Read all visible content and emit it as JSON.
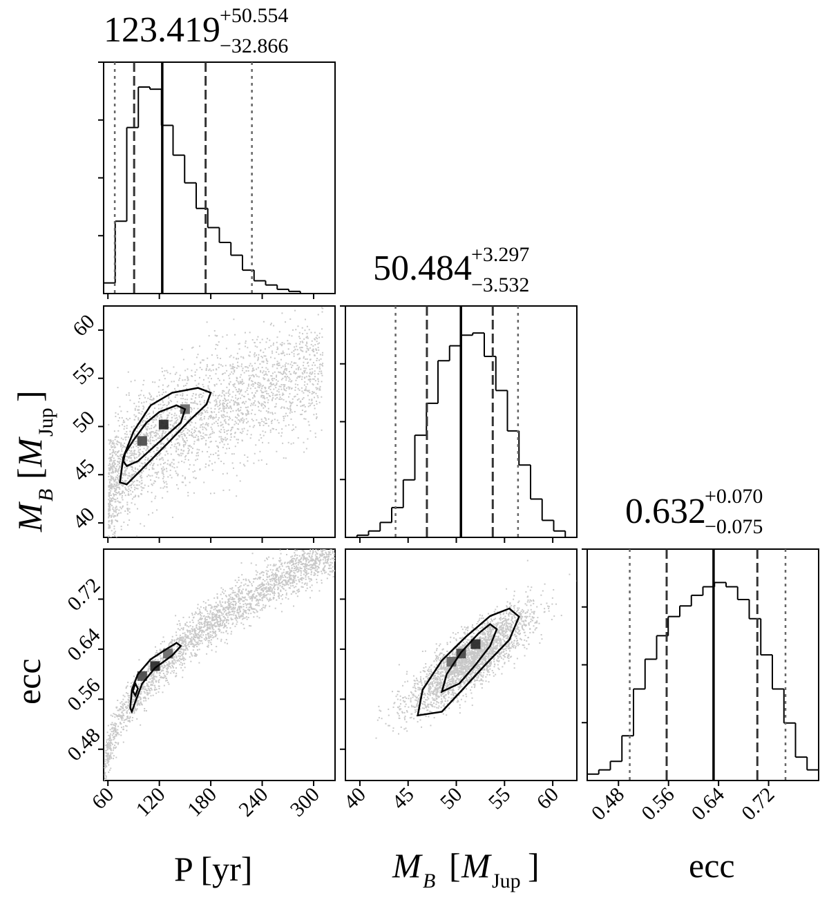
{
  "chart_data": {
    "type": "corner",
    "colors": {
      "hist": "#000000",
      "scatter": "#c8c8c8",
      "contour": "#000000"
    },
    "parameters": [
      {
        "key": "P",
        "label": "P [yr]",
        "label_main": "P [yr]",
        "range": [
          55,
          325
        ],
        "ticks": [
          60,
          120,
          180,
          240,
          300
        ],
        "tick_labels": [
          "60",
          "120",
          "180",
          "240",
          "300"
        ]
      },
      {
        "key": "MB",
        "label": "M_B [M_Jup]",
        "label_main": "M",
        "label_sub": "B",
        "label_unit_main": "M",
        "label_unit_sub": "Jup",
        "range": [
          38.5,
          62.5
        ],
        "ticks": [
          40,
          45,
          50,
          55,
          60
        ],
        "tick_labels": [
          "40",
          "45",
          "50",
          "55",
          "60"
        ]
      },
      {
        "key": "ecc",
        "label": "ecc",
        "label_main": "ecc",
        "range": [
          0.43,
          0.8
        ],
        "ticks": [
          0.48,
          0.56,
          0.64,
          0.72
        ],
        "tick_labels": [
          "0.48",
          "0.56",
          "0.64",
          "0.72"
        ]
      }
    ],
    "titles": [
      {
        "median": "123.419",
        "plus": "+50.554",
        "minus": "−32.866"
      },
      {
        "median": "50.484",
        "plus": "+3.297",
        "minus": "−3.532"
      },
      {
        "median": "0.632",
        "plus": "+0.070",
        "minus": "−0.075"
      }
    ],
    "quantiles": [
      {
        "q025": 68,
        "q16": 90.6,
        "q50": 123.4,
        "q84": 174.0,
        "q975": 228
      },
      {
        "q025": 43.7,
        "q16": 46.95,
        "q50": 50.48,
        "q84": 53.78,
        "q975": 56.4
      },
      {
        "q025": 0.498,
        "q16": 0.557,
        "q50": 0.632,
        "q84": 0.702,
        "q975": 0.747
      }
    ],
    "histograms": [
      {
        "edges": [
          55,
          68.5,
          82,
          95.5,
          109,
          122.5,
          136,
          149.5,
          163,
          176.5,
          190,
          203.5,
          217,
          230.5,
          244,
          257.5,
          271,
          284.5,
          298,
          311.5,
          325
        ],
        "counts": [
          0.05,
          0.34,
          0.78,
          0.97,
          0.96,
          0.79,
          0.65,
          0.52,
          0.4,
          0.31,
          0.24,
          0.18,
          0.11,
          0.06,
          0.04,
          0.02,
          0.01,
          0.0,
          0.0,
          0.0
        ]
      },
      {
        "edges": [
          38.5,
          39.7,
          40.9,
          42.1,
          43.3,
          44.5,
          45.7,
          46.9,
          48.1,
          49.3,
          50.5,
          51.7,
          52.9,
          54.1,
          55.3,
          56.5,
          57.7,
          58.9,
          60.1,
          61.3,
          62.5
        ],
        "counts": [
          0.0,
          0.01,
          0.03,
          0.07,
          0.14,
          0.27,
          0.48,
          0.63,
          0.83,
          0.9,
          0.95,
          0.96,
          0.85,
          0.69,
          0.5,
          0.34,
          0.18,
          0.08,
          0.03,
          0.0
        ]
      },
      {
        "edges": [
          0.43,
          0.4485,
          0.467,
          0.4855,
          0.504,
          0.5225,
          0.541,
          0.5595,
          0.578,
          0.5965,
          0.615,
          0.6335,
          0.652,
          0.6705,
          0.689,
          0.7075,
          0.726,
          0.7445,
          0.763,
          0.7815,
          0.8
        ],
        "counts": [
          0.03,
          0.05,
          0.09,
          0.21,
          0.43,
          0.57,
          0.68,
          0.77,
          0.82,
          0.87,
          0.91,
          0.93,
          0.91,
          0.85,
          0.76,
          0.59,
          0.43,
          0.27,
          0.11,
          0.05
        ]
      }
    ],
    "pairs": [
      {
        "x": "P",
        "y": "MB",
        "density_centers": [
          [
            100,
            48.5
          ],
          [
            125,
            50.2
          ],
          [
            150,
            51.8
          ]
        ],
        "contour_39": [
          [
            80,
            47.2
          ],
          [
            90,
            48.6
          ],
          [
            105,
            50.4
          ],
          [
            120,
            51.5
          ],
          [
            140,
            52.2
          ],
          [
            150,
            51.8
          ],
          [
            145,
            50.4
          ],
          [
            130,
            49.2
          ],
          [
            110,
            47.6
          ],
          [
            95,
            46.4
          ],
          [
            82,
            45.9
          ],
          [
            78,
            46.4
          ]
        ],
        "contour_86": [
          [
            74,
            44.2
          ],
          [
            78,
            46.8
          ],
          [
            90,
            49.5
          ],
          [
            110,
            52.2
          ],
          [
            135,
            53.5
          ],
          [
            165,
            54.0
          ],
          [
            180,
            53.5
          ],
          [
            175,
            52.3
          ],
          [
            155,
            50.6
          ],
          [
            130,
            48.3
          ],
          [
            100,
            45.6
          ],
          [
            82,
            44.0
          ]
        ]
      },
      {
        "x": "P",
        "y": "ecc",
        "density_centers": [
          [
            100,
            0.597
          ],
          [
            115,
            0.613
          ],
          [
            130,
            0.633
          ]
        ],
        "contour_39": [
          [
            89,
            0.573
          ],
          [
            92,
            0.585
          ],
          [
            95,
            0.577
          ],
          [
            92,
            0.566
          ]
        ],
        "contour_86": [
          [
            86,
            0.546
          ],
          [
            88,
            0.575
          ],
          [
            95,
            0.6
          ],
          [
            110,
            0.624
          ],
          [
            128,
            0.64
          ],
          [
            140,
            0.65
          ],
          [
            145,
            0.645
          ],
          [
            135,
            0.63
          ],
          [
            115,
            0.61
          ],
          [
            100,
            0.585
          ],
          [
            92,
            0.556
          ],
          [
            88,
            0.54
          ]
        ]
      },
      {
        "x": "MB",
        "y": "ecc",
        "density_centers": [
          [
            50.5,
            0.633
          ],
          [
            52,
            0.648
          ],
          [
            49.5,
            0.62
          ]
        ],
        "contour_39": [
          [
            48.5,
            0.572
          ],
          [
            49,
            0.6
          ],
          [
            50.5,
            0.635
          ],
          [
            52.3,
            0.665
          ],
          [
            53.5,
            0.68
          ],
          [
            54.2,
            0.672
          ],
          [
            53.5,
            0.645
          ],
          [
            52,
            0.615
          ],
          [
            50.3,
            0.585
          ]
        ],
        "contour_86": [
          [
            46,
            0.534
          ],
          [
            46.5,
            0.575
          ],
          [
            48.5,
            0.622
          ],
          [
            51,
            0.66
          ],
          [
            53.5,
            0.693
          ],
          [
            55.5,
            0.705
          ],
          [
            56.5,
            0.692
          ],
          [
            55.5,
            0.655
          ],
          [
            53,
            0.615
          ],
          [
            50.5,
            0.573
          ],
          [
            48.5,
            0.54
          ]
        ]
      }
    ]
  }
}
